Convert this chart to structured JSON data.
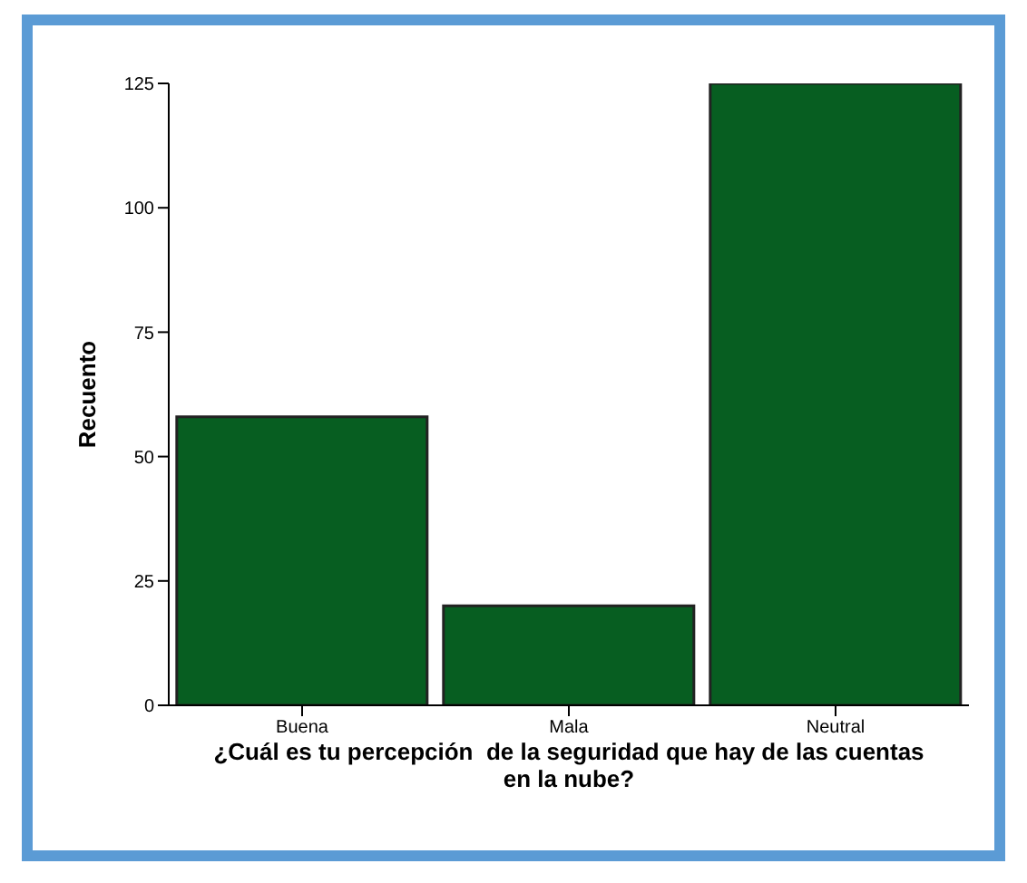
{
  "chart_data": {
    "type": "bar",
    "xlabel": "¿Cuál es tu percepción  de la seguridad que hay de las cuentas en la nube?",
    "ylabel": "Recuento",
    "categories": [
      "Buena",
      "Mala",
      "Neutral"
    ],
    "values": [
      58,
      20,
      125
    ],
    "color": "#075e21",
    "ylim": [
      0,
      125
    ],
    "yticks": [
      0,
      25,
      50,
      75,
      100,
      125
    ],
    "grid": false
  }
}
